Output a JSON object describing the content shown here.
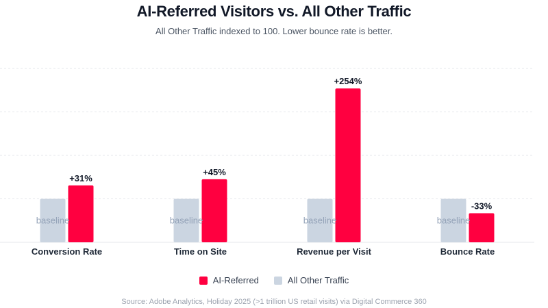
{
  "title": "AI-Referred Visitors vs. All Other Traffic",
  "subtitle": "All Other Traffic indexed to 100. Lower bounce rate is better.",
  "source": "Source: Adobe Analytics, Holiday 2025 (>1 trillion US retail visits) via Digital Commerce 360",
  "legend": {
    "ai_label": "AI-Referred",
    "other_label": "All Other Traffic"
  },
  "colors": {
    "ai": "#ff0040",
    "other": "#cbd5e1",
    "grid": "#e5e7eb",
    "baseline_text": "#94a3b8",
    "label_text": "#111827"
  },
  "chart_data": {
    "type": "bar",
    "title": "AI-Referred Visitors vs. All Other Traffic",
    "categories": [
      "Conversion Rate",
      "Time on Site",
      "Revenue per Visit",
      "Bounce Rate"
    ],
    "series": [
      {
        "name": "All Other Traffic",
        "values": [
          100,
          100,
          100,
          100
        ]
      },
      {
        "name": "AI-Referred",
        "values": [
          131,
          145,
          354,
          67
        ]
      }
    ],
    "bar_labels": [
      "+31%",
      "+45%",
      "+254%",
      "-33%"
    ],
    "baseline_label": "baseline",
    "ylim": [
      0,
      400
    ],
    "grid": true,
    "legend_position": "bottom"
  }
}
